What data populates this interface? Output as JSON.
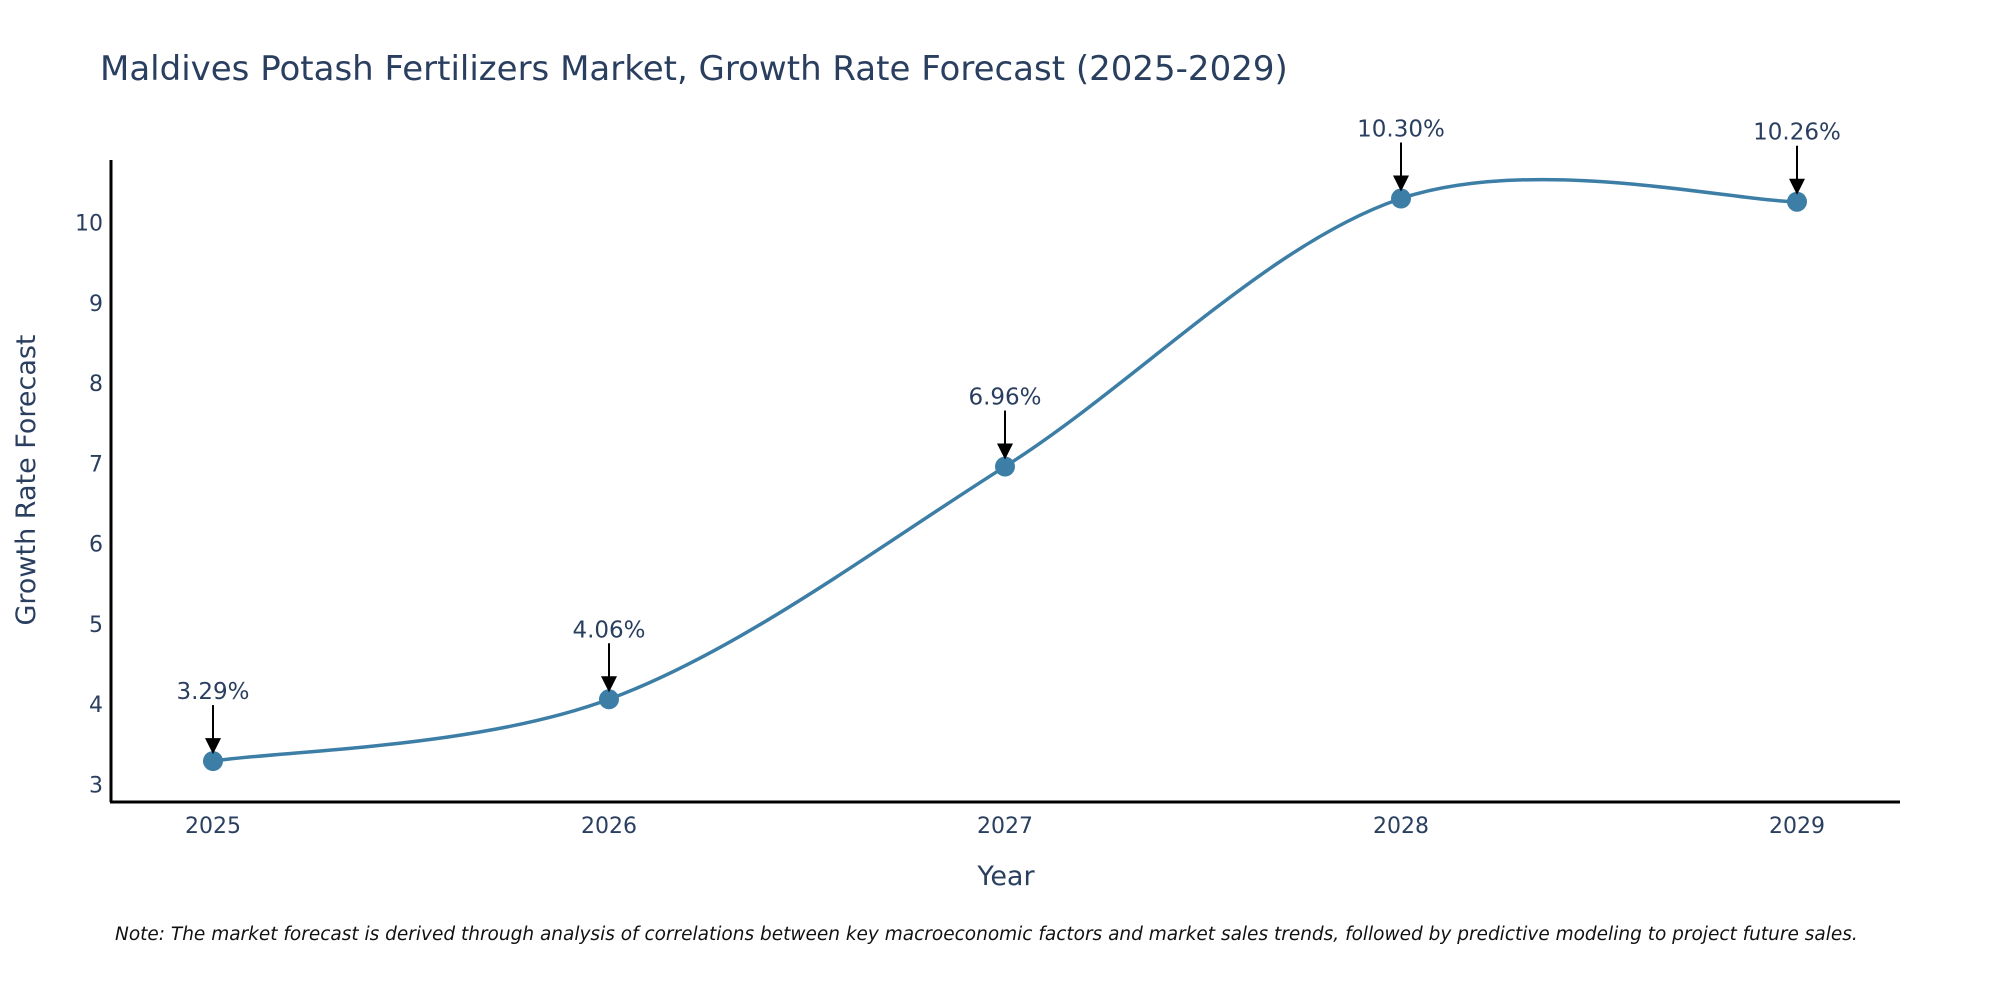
{
  "chart_data": {
    "type": "line",
    "title": "Maldives Potash Fertilizers Market, Growth Rate Forecast (2025-2029)",
    "xlabel": "Year",
    "ylabel": "Growth Rate Forecast",
    "categories": [
      "2025",
      "2026",
      "2027",
      "2028",
      "2029"
    ],
    "values": [
      3.29,
      4.06,
      6.96,
      10.3,
      10.26
    ],
    "data_labels": [
      "3.29%",
      "4.06%",
      "6.96%",
      "10.30%",
      "10.26%"
    ],
    "yticks": [
      "3",
      "4",
      "5",
      "6",
      "7",
      "8",
      "9",
      "10"
    ],
    "ylim": [
      2.78,
      10.78
    ],
    "grid": false,
    "line_color": "#3d7ea6",
    "note": "Note: The market forecast is derived through analysis of correlations between key macroeconomic factors and market sales trends, followed by predictive modeling to project future sales."
  }
}
